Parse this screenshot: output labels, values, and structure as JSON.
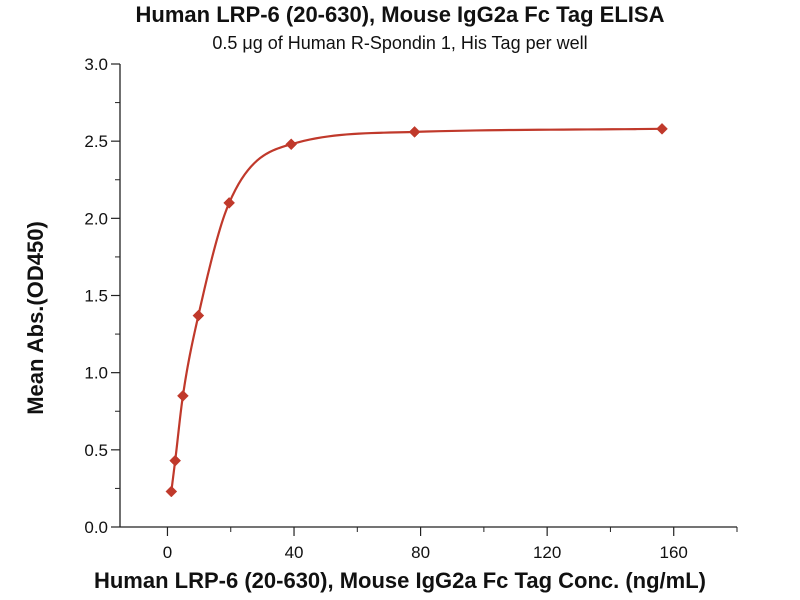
{
  "chart_data": {
    "type": "scatter",
    "title": "Human LRP-6 (20-630), Mouse IgG2a Fc Tag ELISA",
    "subtitle": "0.5 μg of Human R-Spondin 1, His Tag per well",
    "xlabel": "Human LRP-6 (20-630), Mouse IgG2a Fc Tag Conc. (ng/mL)",
    "ylabel": "Mean Abs.(OD450)",
    "xlim": [
      -15,
      180
    ],
    "ylim": [
      0,
      3.0
    ],
    "x_ticks": [
      0,
      40,
      80,
      120,
      160
    ],
    "y_ticks": [
      0.0,
      0.5,
      1.0,
      1.5,
      2.0,
      2.5,
      3.0
    ],
    "x_tick_labels": [
      "0",
      "40",
      "80",
      "120",
      "160"
    ],
    "y_tick_labels": [
      "0.0",
      "0.5",
      "1.0",
      "1.5",
      "2.0",
      "2.5",
      "3.0"
    ],
    "grid": false,
    "series": [
      {
        "x": [
          1.22,
          2.44,
          4.88,
          9.77,
          19.5,
          39.1,
          78.1,
          156.3
        ],
        "y": [
          0.23,
          0.43,
          0.85,
          1.37,
          2.1,
          2.48,
          2.56,
          2.58
        ],
        "marker": "diamond",
        "fit_curve": true,
        "color": "#c0392b"
      }
    ]
  }
}
